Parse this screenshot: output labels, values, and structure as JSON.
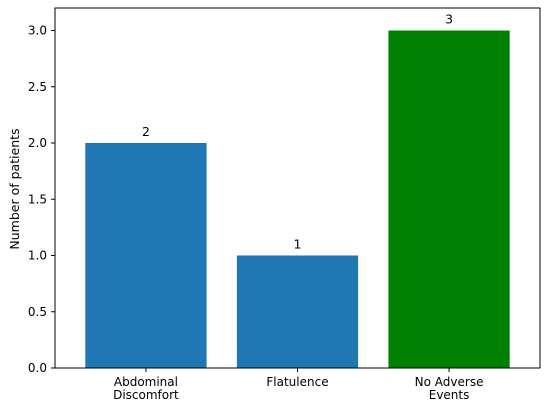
{
  "chart_data": {
    "type": "bar",
    "title": "",
    "xlabel": "",
    "ylabel": "Number of patients",
    "categories": [
      [
        "Abdominal",
        "Discomfort"
      ],
      [
        "Flatulence"
      ],
      [
        "No Adverse",
        "Events"
      ]
    ],
    "values": [
      2,
      1,
      3
    ],
    "data_labels": [
      "2",
      "1",
      "3"
    ],
    "bar_colors": [
      "#1f77b4",
      "#1f77b4",
      "#008000"
    ],
    "ylim": [
      0,
      3.2
    ],
    "yticks": [
      0.0,
      0.5,
      1.0,
      1.5,
      2.0,
      2.5,
      3.0
    ],
    "ytick_labels": [
      "0.0",
      "0.5",
      "1.0",
      "1.5",
      "2.0",
      "2.5",
      "3.0"
    ],
    "grid": false,
    "legend": "none"
  }
}
